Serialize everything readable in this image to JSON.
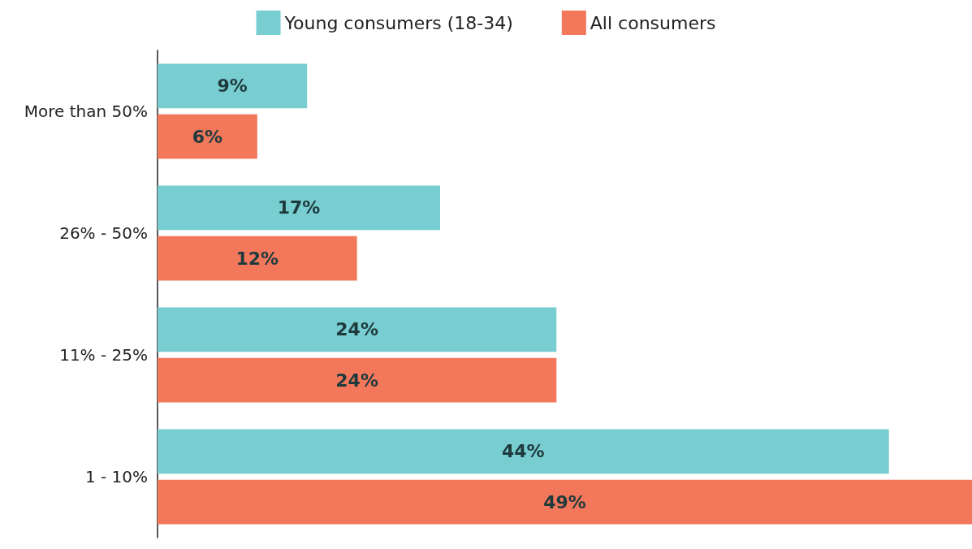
{
  "chart_data": {
    "type": "bar",
    "orientation": "horizontal",
    "categories": [
      "More than 50%",
      "26% - 50%",
      "11% - 25%",
      "1 - 10%"
    ],
    "series": [
      {
        "name": "Young consumers (18-34)",
        "color": "#77cdd0",
        "values": [
          9,
          17,
          24,
          44
        ],
        "value_labels": [
          "9%",
          "17%",
          "24%",
          "44%"
        ]
      },
      {
        "name": "All consumers",
        "color": "#f2775b",
        "values": [
          6,
          12,
          24,
          49
        ],
        "value_labels": [
          "6%",
          "12%",
          "24%",
          "49%"
        ]
      }
    ],
    "legend": "top"
  }
}
